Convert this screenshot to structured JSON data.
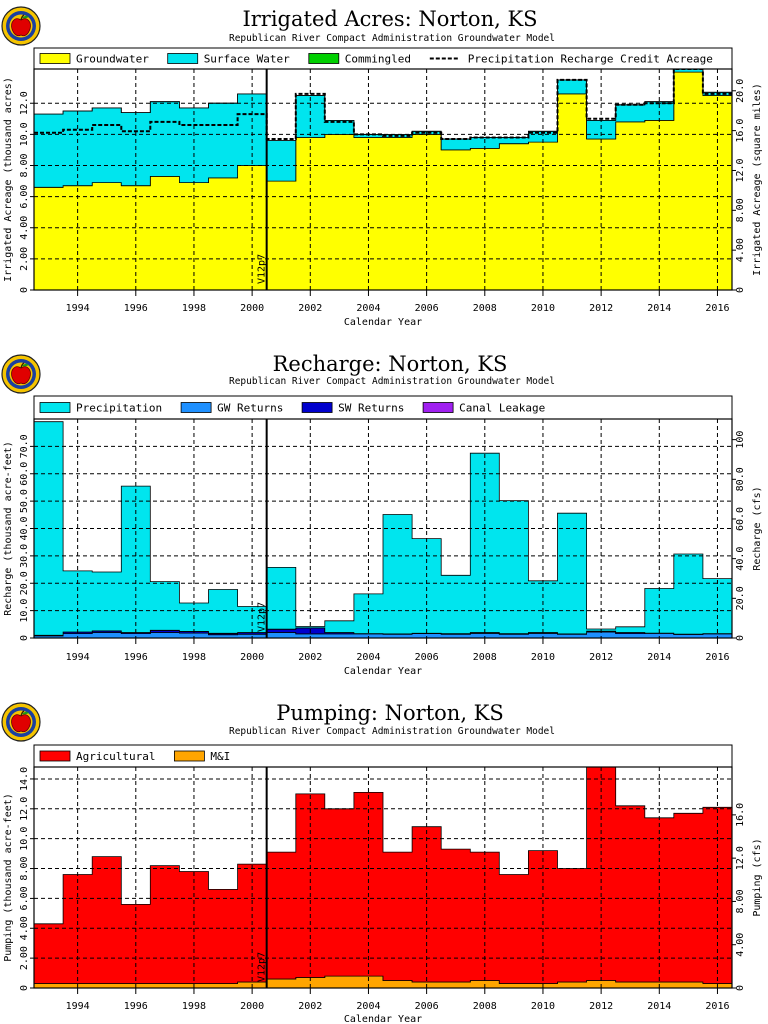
{
  "chart_data": [
    {
      "type": "area",
      "title": "Irrigated Acres: Norton, KS",
      "subtitle": "Republican River Compact Administration Groundwater Model",
      "xlabel": "Calendar Year",
      "ylabel": "Irrigated Acreage (thousand acres)",
      "y2label": "Irrigated Acreage (square miles)",
      "marker_label": "V12p7",
      "marker_year": 2000.5,
      "xlim": [
        1992.5,
        2016.5
      ],
      "ylim": [
        0,
        14.2
      ],
      "yticks": [
        0,
        2,
        4,
        6,
        8,
        10,
        12
      ],
      "ytick_labels": [
        "0",
        "2.00",
        "4.00",
        "6.00",
        "8.00",
        "10.0",
        "12.0"
      ],
      "y2ticks": [
        0,
        4,
        8,
        12,
        16,
        20
      ],
      "y2tick_labels": [
        "0",
        "4.00",
        "8.00",
        "12.0",
        "16.0",
        "20.0"
      ],
      "y2_scale": 1.5625,
      "xticks": [
        1994,
        1996,
        1998,
        2000,
        2002,
        2004,
        2006,
        2008,
        2010,
        2012,
        2014,
        2016
      ],
      "xtick_labels": [
        "1994",
        "1996",
        "1998",
        "2000",
        "2002",
        "2004",
        "2006",
        "2008",
        "2010",
        "2012",
        "2014",
        "2016"
      ],
      "years": [
        1993,
        1994,
        1995,
        1996,
        1997,
        1998,
        1999,
        2000,
        2001,
        2002,
        2003,
        2004,
        2005,
        2006,
        2007,
        2008,
        2009,
        2010,
        2011,
        2012,
        2013,
        2014,
        2015,
        2016
      ],
      "series": [
        {
          "name": "Groundwater",
          "color": "#ffff00",
          "values": [
            6.6,
            6.7,
            6.9,
            6.7,
            7.3,
            6.9,
            7.2,
            8.0,
            7.0,
            9.8,
            10.0,
            9.8,
            9.8,
            10.0,
            9.0,
            9.1,
            9.4,
            9.5,
            12.6,
            9.7,
            10.8,
            10.9,
            14.0,
            12.5
          ]
        },
        {
          "name": "Surface Water",
          "color": "#00e5ee",
          "values": [
            4.7,
            4.8,
            4.8,
            4.7,
            4.8,
            4.8,
            4.8,
            4.6,
            2.6,
            2.7,
            0.9,
            0.2,
            0.2,
            0.2,
            0.7,
            0.7,
            0.4,
            0.7,
            0.9,
            1.2,
            1.1,
            1.2,
            0.3,
            0.2
          ]
        },
        {
          "name": "Commingled",
          "color": "#00d000",
          "values": [
            0,
            0,
            0,
            0,
            0,
            0,
            0,
            0,
            0,
            0,
            0,
            0,
            0,
            0,
            0,
            0,
            0,
            0,
            0,
            0,
            0,
            0,
            0,
            0
          ]
        }
      ],
      "line_series": {
        "name": "Precipitation Recharge Credit Acreage",
        "values": [
          10.1,
          10.3,
          10.6,
          10.2,
          10.8,
          10.6,
          10.6,
          11.3,
          9.7,
          12.6,
          10.8,
          10.0,
          9.9,
          10.1,
          9.7,
          9.8,
          9.8,
          10.1,
          13.5,
          11.0,
          11.9,
          12.0,
          14.2,
          12.6
        ]
      },
      "legend_placement": "top"
    },
    {
      "type": "area",
      "title": "Recharge: Norton, KS",
      "subtitle": "Republican River Compact Administration Groundwater Model",
      "xlabel": "Calendar Year",
      "ylabel": "Recharge (thousand acre-feet)",
      "y2label": "Recharge (cfs)",
      "marker_label": "V12p7",
      "marker_year": 2000.5,
      "xlim": [
        1992.5,
        2016.5
      ],
      "ylim": [
        0,
        80
      ],
      "yticks": [
        0,
        10,
        20,
        30,
        40,
        50,
        60,
        70
      ],
      "ytick_labels": [
        "0",
        "10.0",
        "20.0",
        "30.0",
        "40.0",
        "50.0",
        "60.0",
        "70.0"
      ],
      "y2ticks": [
        0,
        20,
        40,
        60,
        80,
        100
      ],
      "y2tick_labels": [
        "0",
        "20.0",
        "40.0",
        "60.0",
        "80.0",
        "100"
      ],
      "y2_scale": 1.38,
      "xticks": [
        1994,
        1996,
        1998,
        2000,
        2002,
        2004,
        2006,
        2008,
        2010,
        2012,
        2014,
        2016
      ],
      "xtick_labels": [
        "1994",
        "1996",
        "1998",
        "2000",
        "2002",
        "2004",
        "2006",
        "2008",
        "2010",
        "2012",
        "2014",
        "2016"
      ],
      "years": [
        1993,
        1994,
        1995,
        1996,
        1997,
        1998,
        1999,
        2000,
        2001,
        2002,
        2003,
        2004,
        2005,
        2006,
        2007,
        2008,
        2009,
        2010,
        2011,
        2012,
        2013,
        2014,
        2015,
        2016
      ],
      "series": [
        {
          "name": "GW Returns",
          "color": "#1e90ff",
          "values": [
            0.8,
            1.6,
            2.0,
            1.6,
            2.0,
            1.8,
            1.2,
            1.4,
            2.0,
            1.5,
            1.5,
            1.5,
            1.4,
            1.6,
            1.4,
            1.7,
            1.4,
            1.7,
            1.4,
            2.2,
            1.6,
            1.7,
            1.3,
            1.5
          ]
        },
        {
          "name": "SW Returns",
          "color": "#0000cd",
          "values": [
            0.2,
            0.6,
            0.6,
            0.4,
            0.8,
            0.6,
            0.5,
            0.6,
            1.2,
            2.2,
            0.5,
            0.1,
            0.1,
            0.1,
            0.2,
            0.3,
            0.2,
            0.3,
            0.1,
            0.3,
            0.4,
            0.1,
            0.1,
            0.1
          ]
        },
        {
          "name": "Canal Leakage",
          "color": "#a020f0",
          "values": [
            0,
            0,
            0,
            0,
            0,
            0,
            0,
            0,
            0,
            0,
            0,
            0,
            0,
            0,
            0,
            0,
            0,
            0,
            0,
            0,
            0,
            0,
            0,
            0
          ]
        },
        {
          "name": "Precipitation",
          "color": "#00e5ee",
          "values": [
            78.0,
            22.3,
            21.5,
            53.5,
            17.8,
            10.4,
            16.0,
            9.5,
            22.6,
            0.5,
            4.3,
            14.5,
            43.6,
            34.6,
            21.3,
            65.5,
            48.6,
            18.9,
            44.1,
            0.8,
            2.1,
            16.3,
            29.3,
            20.1
          ]
        }
      ],
      "legend_placement": "top"
    },
    {
      "type": "area",
      "title": "Pumping: Norton, KS",
      "subtitle": "Republican River Compact Administration Groundwater Model",
      "xlabel": "Calendar Year",
      "ylabel": "Pumping (thousand acre-feet)",
      "y2label": "Pumping (cfs)",
      "marker_label": "V12p7",
      "marker_year": 2000.5,
      "xlim": [
        1992.5,
        2016.5
      ],
      "ylim": [
        0,
        14.8
      ],
      "yticks": [
        0,
        2,
        4,
        6,
        8,
        10,
        12,
        14
      ],
      "ytick_labels": [
        "0",
        "2.00",
        "4.00",
        "6.00",
        "8.00",
        "10.0",
        "12.0",
        "14.0"
      ],
      "y2ticks": [
        0,
        4,
        8,
        12,
        16
      ],
      "y2tick_labels": [
        "0",
        "4.00",
        "8.00",
        "12.0",
        "16.0"
      ],
      "y2_scale": 1.38,
      "xticks": [
        1994,
        1996,
        1998,
        2000,
        2002,
        2004,
        2006,
        2008,
        2010,
        2012,
        2014,
        2016
      ],
      "xtick_labels": [
        "1994",
        "1996",
        "1998",
        "2000",
        "2002",
        "2004",
        "2006",
        "2008",
        "2010",
        "2012",
        "2014",
        "2016"
      ],
      "years": [
        1993,
        1994,
        1995,
        1996,
        1997,
        1998,
        1999,
        2000,
        2001,
        2002,
        2003,
        2004,
        2005,
        2006,
        2007,
        2008,
        2009,
        2010,
        2011,
        2012,
        2013,
        2014,
        2015,
        2016
      ],
      "series": [
        {
          "name": "M&I",
          "color": "#ffa500",
          "values": [
            0.3,
            0.3,
            0.3,
            0.3,
            0.3,
            0.3,
            0.3,
            0.4,
            0.6,
            0.7,
            0.8,
            0.8,
            0.5,
            0.4,
            0.4,
            0.5,
            0.3,
            0.3,
            0.4,
            0.5,
            0.4,
            0.4,
            0.4,
            0.3
          ]
        },
        {
          "name": "Agricultural",
          "color": "#ff0000",
          "values": [
            4.0,
            7.3,
            8.5,
            5.3,
            7.9,
            7.5,
            6.3,
            7.9,
            8.5,
            12.3,
            11.2,
            12.3,
            8.6,
            10.4,
            8.9,
            8.6,
            7.3,
            8.9,
            7.6,
            14.4,
            11.8,
            11.0,
            11.3,
            11.8
          ]
        }
      ],
      "legend_placement": "top"
    }
  ]
}
